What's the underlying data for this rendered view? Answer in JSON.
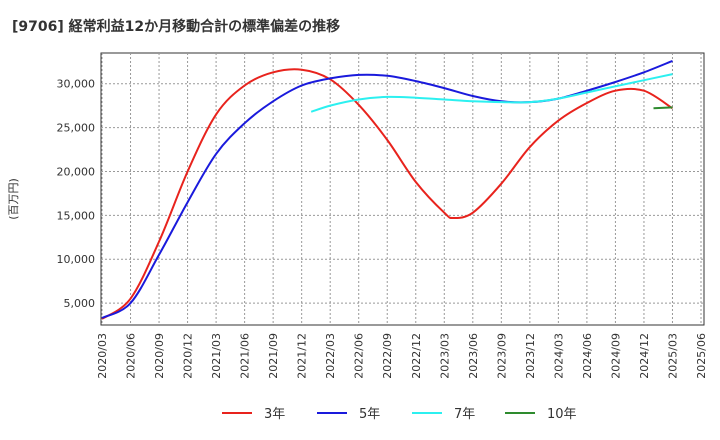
{
  "chart_data": {
    "type": "line",
    "title": "[9706]  経常利益12か月移動合計の標準偏差の推移",
    "ylabel": "(百万円)",
    "xlabel": "",
    "ylim": [
      2500,
      33500
    ],
    "grid": true,
    "legend_position": "bottom",
    "x_ticks": [
      "2020/03",
      "2020/06",
      "2020/09",
      "2020/12",
      "2021/03",
      "2021/06",
      "2021/09",
      "2021/12",
      "2022/03",
      "2022/06",
      "2022/09",
      "2022/12",
      "2023/03",
      "2023/06",
      "2023/09",
      "2023/12",
      "2024/03",
      "2024/06",
      "2024/09",
      "2024/12",
      "2025/03",
      "2025/06"
    ],
    "y_ticks": [
      5000,
      10000,
      15000,
      20000,
      25000,
      30000
    ],
    "y_tick_labels": [
      "5,000",
      "10,000",
      "15,000",
      "20,000",
      "25,000",
      "30,000"
    ],
    "series": [
      {
        "name": "3年",
        "color": "#e8231d",
        "points": [
          [
            "2020/03",
            3200
          ],
          [
            "2020/06",
            5500
          ],
          [
            "2020/09",
            12000
          ],
          [
            "2020/12",
            20000
          ],
          [
            "2021/03",
            26500
          ],
          [
            "2021/06",
            29800
          ],
          [
            "2021/09",
            31300
          ],
          [
            "2021/12",
            31600
          ],
          [
            "2022/03",
            30500
          ],
          [
            "2022/06",
            27600
          ],
          [
            "2022/09",
            23600
          ],
          [
            "2022/12",
            18800
          ],
          [
            "2023/03",
            15300
          ],
          [
            "2023/04",
            14700
          ],
          [
            "2023/06",
            15300
          ],
          [
            "2023/09",
            18600
          ],
          [
            "2023/12",
            22800
          ],
          [
            "2024/03",
            25800
          ],
          [
            "2024/06",
            27800
          ],
          [
            "2024/09",
            29200
          ],
          [
            "2024/12",
            29200
          ],
          [
            "2025/03",
            27200
          ]
        ]
      },
      {
        "name": "5年",
        "color": "#1a1adc",
        "points": [
          [
            "2020/03",
            3300
          ],
          [
            "2020/06",
            5000
          ],
          [
            "2020/09",
            10500
          ],
          [
            "2020/12",
            16500
          ],
          [
            "2021/03",
            22000
          ],
          [
            "2021/06",
            25500
          ],
          [
            "2021/09",
            28000
          ],
          [
            "2021/12",
            29800
          ],
          [
            "2022/03",
            30600
          ],
          [
            "2022/06",
            31000
          ],
          [
            "2022/09",
            30900
          ],
          [
            "2022/12",
            30300
          ],
          [
            "2023/03",
            29500
          ],
          [
            "2023/06",
            28600
          ],
          [
            "2023/09",
            28000
          ],
          [
            "2023/12",
            27900
          ],
          [
            "2024/03",
            28300
          ],
          [
            "2024/06",
            29200
          ],
          [
            "2024/09",
            30200
          ],
          [
            "2024/12",
            31300
          ],
          [
            "2025/03",
            32600
          ]
        ]
      },
      {
        "name": "7年",
        "color": "#2cf0f0",
        "points": [
          [
            "2022/01",
            26800
          ],
          [
            "2022/03",
            27500
          ],
          [
            "2022/06",
            28200
          ],
          [
            "2022/09",
            28500
          ],
          [
            "2022/12",
            28400
          ],
          [
            "2023/03",
            28200
          ],
          [
            "2023/06",
            28000
          ],
          [
            "2023/09",
            27900
          ],
          [
            "2023/12",
            27900
          ],
          [
            "2024/03",
            28300
          ],
          [
            "2024/06",
            29000
          ],
          [
            "2024/09",
            29700
          ],
          [
            "2024/12",
            30400
          ],
          [
            "2025/03",
            31100
          ]
        ]
      },
      {
        "name": "10年",
        "color": "#2e8b2e",
        "points": [
          [
            "2025/01",
            27200
          ],
          [
            "2025/03",
            27300
          ]
        ]
      }
    ]
  }
}
